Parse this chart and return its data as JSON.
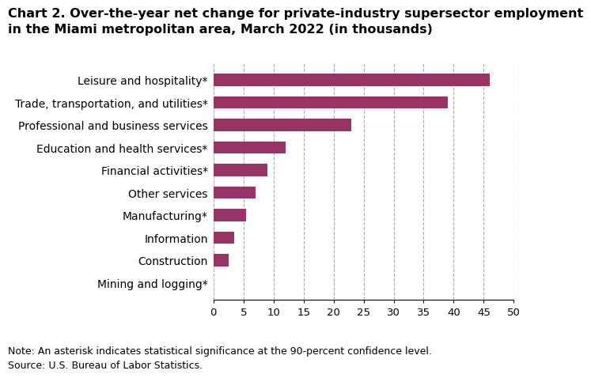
{
  "categories": [
    "Mining and logging*",
    "Construction",
    "Information",
    "Manufacturing*",
    "Other services",
    "Financial activities*",
    "Education and health services*",
    "Professional and business services",
    "Trade, transportation, and utilities*",
    "Leisure and hospitality*"
  ],
  "values": [
    0.1,
    2.5,
    3.5,
    5.5,
    7.0,
    9.0,
    12.0,
    23.0,
    39.0,
    46.0
  ],
  "bar_color": "#993366",
  "title_line1": "Chart 2. Over-the-year net change for private-industry supersector employment",
  "title_line2": "in the Miami metropolitan area, March 2022 (in thousands)",
  "xlim": [
    0,
    50
  ],
  "xticks": [
    0,
    5,
    10,
    15,
    20,
    25,
    30,
    35,
    40,
    45,
    50
  ],
  "note1": "Note: An asterisk indicates statistical significance at the 90-percent confidence level.",
  "note2": "Source: U.S. Bureau of Labor Statistics.",
  "background_color": "#ffffff",
  "grid_color": "#aaaaaa",
  "title_fontsize": 11.5,
  "label_fontsize": 10,
  "tick_fontsize": 9.5,
  "note_fontsize": 9,
  "bar_height": 0.55
}
